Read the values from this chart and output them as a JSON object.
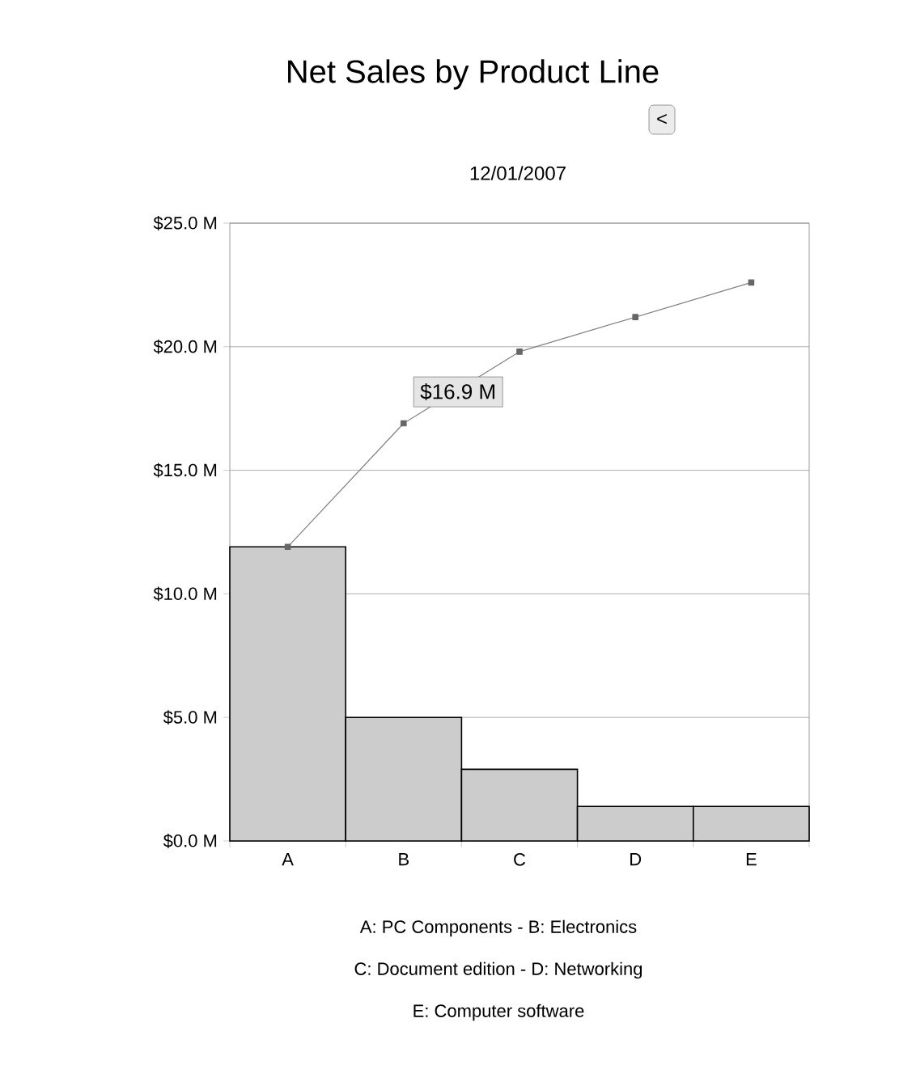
{
  "chart_data": {
    "type": "bar",
    "title": "Net Sales by Product Line",
    "subtitle": "12/01/2007",
    "categories": [
      "A",
      "B",
      "C",
      "D",
      "E"
    ],
    "series": [
      {
        "color": "#cccccc",
        "values": [
          11.9,
          5.0,
          2.9,
          1.4,
          1.4
        ]
      },
      {
        "type": "line",
        "color": "#808080",
        "marker": "square",
        "values": [
          11.9,
          16.9,
          19.8,
          21.2,
          22.6
        ]
      }
    ],
    "ylim": [
      0,
      25
    ],
    "yticks": [
      {
        "value": 0,
        "label": "$0.0 M"
      },
      {
        "value": 5,
        "label": "$5.0 M"
      },
      {
        "value": 10,
        "label": "$10.0 M"
      },
      {
        "value": 15,
        "label": "$15.0 M"
      },
      {
        "value": 20,
        "label": "$20.0 M"
      },
      {
        "value": 25,
        "label": "$25.0 M"
      }
    ],
    "grid": "y",
    "annotations": [
      {
        "text": "$16.9 M",
        "x": "B",
        "y": 16.9
      },
      "<",
      "A: PC Components - B: Electronics",
      "C: Document edition - D: Networking",
      "E: Computer software"
    ]
  }
}
